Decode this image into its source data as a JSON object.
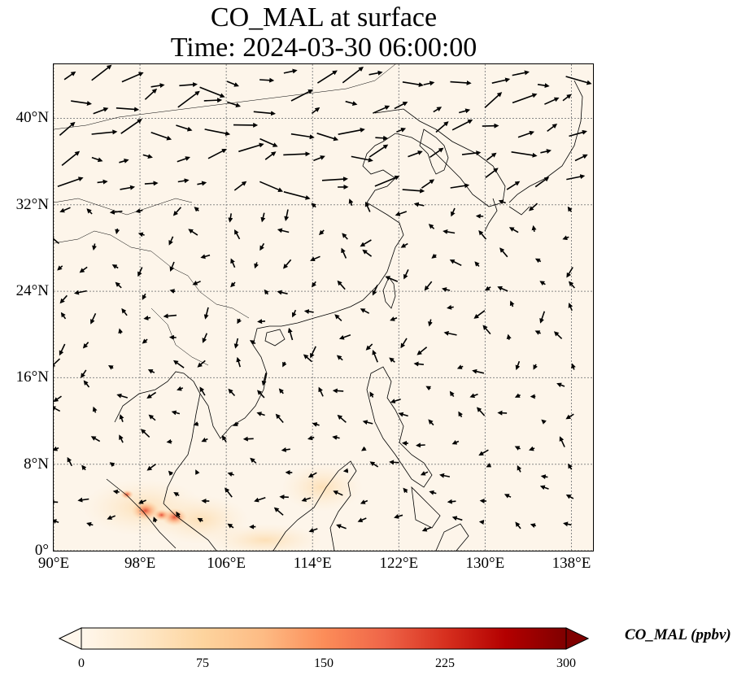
{
  "title": {
    "line1": "CO_MAL at surface",
    "line2": "Time: 2024-03-30 06:00:00"
  },
  "map": {
    "lon_range": [
      90,
      140
    ],
    "lat_range": [
      0,
      45
    ],
    "background_color": "#fdf5ea",
    "grid": "dotted",
    "lat_ticks": [
      {
        "value": 0,
        "label": "0°"
      },
      {
        "value": 8,
        "label": "8°N"
      },
      {
        "value": 16,
        "label": "16°N"
      },
      {
        "value": 24,
        "label": "24°N"
      },
      {
        "value": 32,
        "label": "32°N"
      },
      {
        "value": 40,
        "label": "40°N"
      }
    ],
    "lon_ticks": [
      {
        "value": 90,
        "label": "90°E"
      },
      {
        "value": 98,
        "label": "98°E"
      },
      {
        "value": 106,
        "label": "106°E"
      },
      {
        "value": 114,
        "label": "114°E"
      },
      {
        "value": 122,
        "label": "122°E"
      },
      {
        "value": 130,
        "label": "130°E"
      },
      {
        "value": 138,
        "label": "138°E"
      }
    ],
    "hotspots": [
      {
        "lon": 98.5,
        "lat": 3.7,
        "value": 160
      },
      {
        "lon": 101.2,
        "lat": 3.1,
        "value": 140
      },
      {
        "lon": 100.0,
        "lat": 3.3,
        "value": 60
      },
      {
        "lon": 96.8,
        "lat": 5.2,
        "value": 30
      }
    ],
    "wind_vectors": "surface wind arrows (black)"
  },
  "colorbar": {
    "label": "CO_MAL (ppbv)",
    "colormap": "OrRd",
    "range": [
      0,
      300
    ],
    "extend": "both",
    "ticks": [
      "0",
      "75",
      "150",
      "225",
      "300"
    ],
    "colors": [
      "#fff7ec",
      "#fee8c8",
      "#fdd49e",
      "#fdbb84",
      "#fc8d59",
      "#ef6548",
      "#d7301f",
      "#b30000",
      "#7f0000"
    ]
  }
}
